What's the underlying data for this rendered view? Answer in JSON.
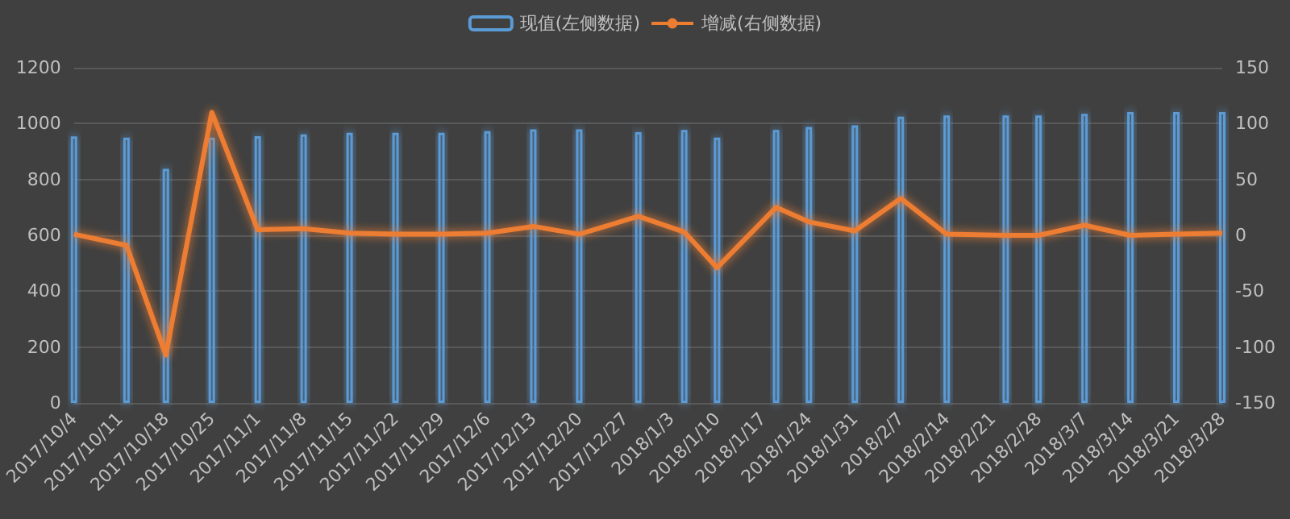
{
  "chart_data": {
    "type": "bar",
    "x": [
      "2017-10-04",
      "2017-10-12",
      "2017-10-18",
      "2017-10-25",
      "2017-11-01",
      "2017-11-08",
      "2017-11-15",
      "2017-11-22",
      "2017-11-29",
      "2017-12-06",
      "2017-12-13",
      "2017-12-20",
      "2017-12-29",
      "2018-01-05",
      "2018-01-10",
      "2018-01-19",
      "2018-01-24",
      "2018-01-31",
      "2018-02-07",
      "2018-02-14",
      "2018-02-23",
      "2018-02-28",
      "2018-03-07",
      "2018-03-14",
      "2018-03-21",
      "2018-03-28"
    ],
    "series": [
      {
        "name": "现值(左侧数据)",
        "color": "#5b9bd5",
        "values": [
          954,
          950,
          838,
          950,
          955,
          961,
          967,
          967,
          967,
          973,
          979,
          979,
          969,
          977,
          950,
          977,
          988,
          994,
          1025,
          1029,
          1029,
          1029,
          1035,
          1041,
          1041,
          1041
        ]
      },
      {
        "name": "增减(右侧数据)",
        "type": "line",
        "axis": "y2",
        "color": "#ed7d31",
        "values": [
          1,
          -9,
          -107,
          110,
          5,
          6,
          2,
          1,
          1,
          2,
          8,
          1,
          17,
          3,
          -29,
          25,
          12,
          4,
          33,
          1,
          0,
          0,
          9,
          0,
          1,
          2
        ]
      }
    ],
    "xlim": [
      "2017-10-04",
      "2018-03-28"
    ],
    "xticks": [
      {
        "value": "2017-10-04",
        "label": "2017/10/4"
      },
      {
        "value": "2017-10-11",
        "label": "2017/10/11"
      },
      {
        "value": "2017-10-18",
        "label": "2017/10/18"
      },
      {
        "value": "2017-10-25",
        "label": "2017/10/25"
      },
      {
        "value": "2017-11-01",
        "label": "2017/11/1"
      },
      {
        "value": "2017-11-08",
        "label": "2017/11/8"
      },
      {
        "value": "2017-11-15",
        "label": "2017/11/15"
      },
      {
        "value": "2017-11-22",
        "label": "2017/11/22"
      },
      {
        "value": "2017-11-29",
        "label": "2017/11/29"
      },
      {
        "value": "2017-12-06",
        "label": "2017/12/6"
      },
      {
        "value": "2017-12-13",
        "label": "2017/12/13"
      },
      {
        "value": "2017-12-20",
        "label": "2017/12/20"
      },
      {
        "value": "2017-12-27",
        "label": "2017/12/27"
      },
      {
        "value": "2018-01-03",
        "label": "2018/1/3"
      },
      {
        "value": "2018-01-10",
        "label": "2018/1/10"
      },
      {
        "value": "2018-01-17",
        "label": "2018/1/17"
      },
      {
        "value": "2018-01-24",
        "label": "2018/1/24"
      },
      {
        "value": "2018-01-31",
        "label": "2018/1/31"
      },
      {
        "value": "2018-02-07",
        "label": "2018/2/7"
      },
      {
        "value": "2018-02-14",
        "label": "2018/2/14"
      },
      {
        "value": "2018-02-21",
        "label": "2018/2/21"
      },
      {
        "value": "2018-02-28",
        "label": "2018/2/28"
      },
      {
        "value": "2018-03-07",
        "label": "2018/3/7"
      },
      {
        "value": "2018-03-14",
        "label": "2018/3/14"
      },
      {
        "value": "2018-03-21",
        "label": "2018/3/21"
      },
      {
        "value": "2018-03-28",
        "label": "2018/3/28"
      }
    ],
    "ylim": [
      0,
      1200
    ],
    "yticks": [
      0,
      200,
      400,
      600,
      800,
      1000,
      1200
    ],
    "y2lim": [
      -150,
      150
    ],
    "y2ticks": [
      -150,
      -100,
      -50,
      0,
      50,
      100,
      150
    ],
    "grid": "y",
    "legend": "top",
    "marker": "none",
    "line_style": "solid"
  }
}
